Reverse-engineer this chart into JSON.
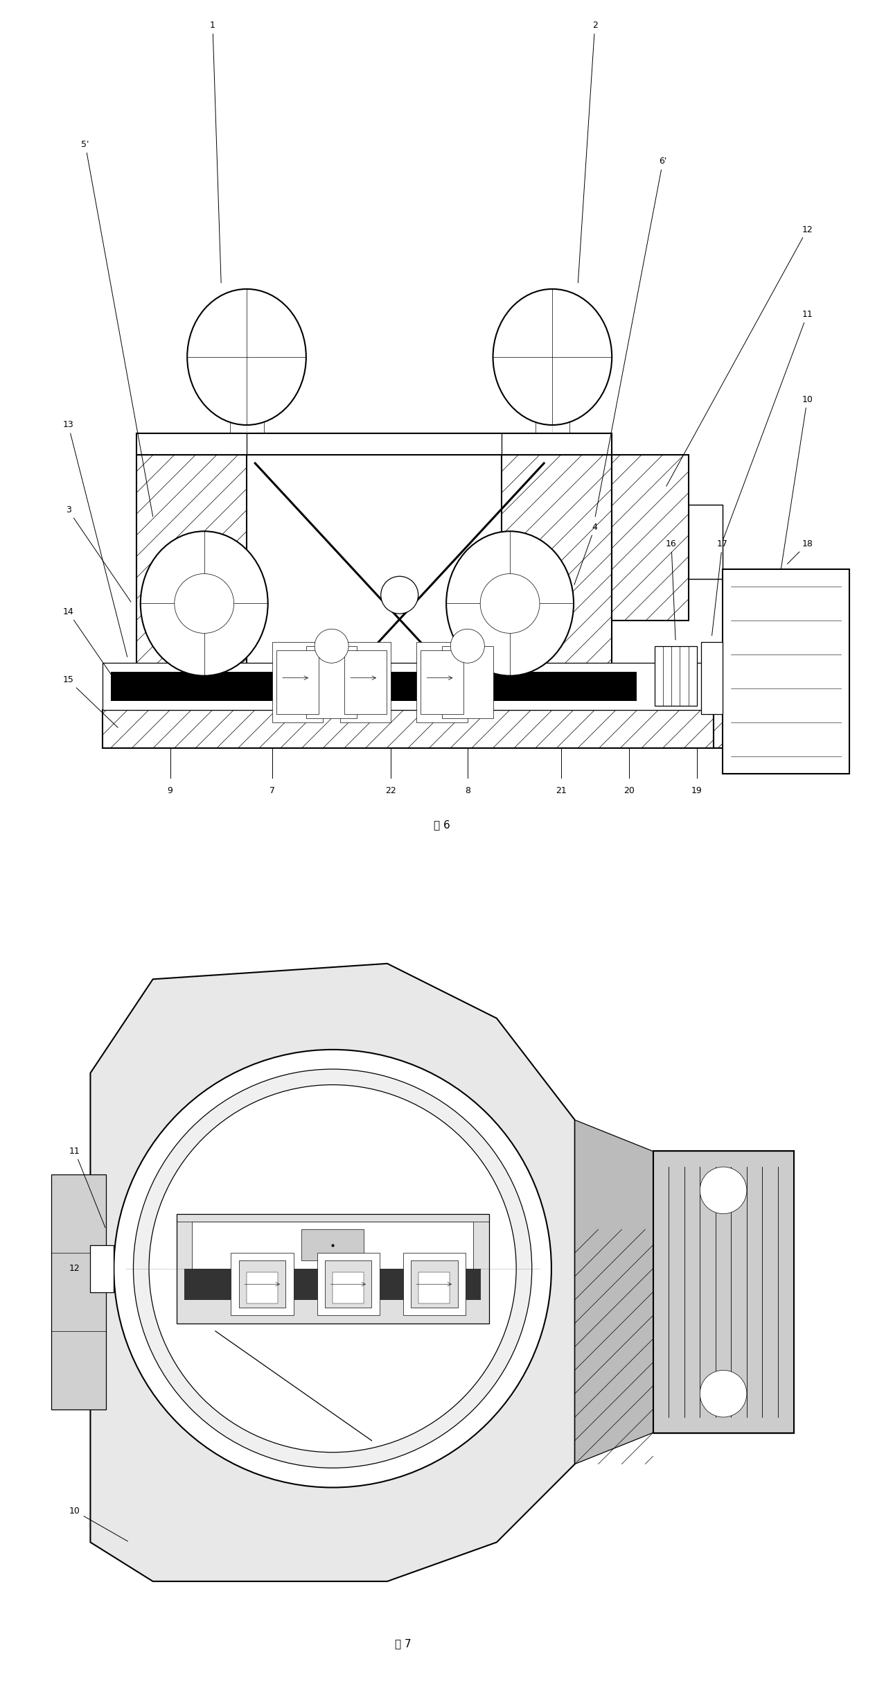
{
  "bg_color": "#ffffff",
  "line_color": "#000000",
  "fig6_label": "图 6",
  "fig7_label": "图 7",
  "fig_width": 12.76,
  "fig_height": 24.52,
  "dpi": 100
}
